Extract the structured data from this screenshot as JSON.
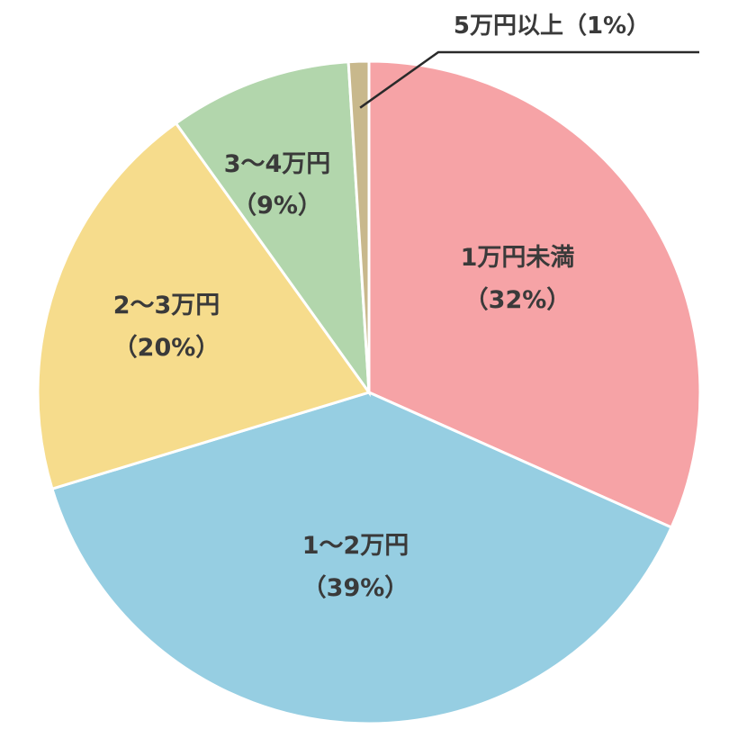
{
  "chart_data": {
    "type": "pie",
    "title": "",
    "slices": [
      {
        "label": "1万円未満",
        "pct_label": "（32%）",
        "value": 32,
        "color": "#f6a3a6"
      },
      {
        "label": "1～2万円",
        "pct_label": "（39%）",
        "value": 39,
        "color": "#96cee2"
      },
      {
        "label": "2～3万円",
        "pct_label": "（20%）",
        "value": 20,
        "color": "#f6dc8c"
      },
      {
        "label": "3～4万円",
        "pct_label": "（9%）",
        "value": 9,
        "color": "#b2d6ac"
      },
      {
        "label": "5万円以上",
        "pct_label": "（1%）",
        "value": 1,
        "color": "#c8b88c"
      }
    ],
    "start_angle_deg": 0,
    "direction": "clockwise",
    "legend": "none"
  }
}
